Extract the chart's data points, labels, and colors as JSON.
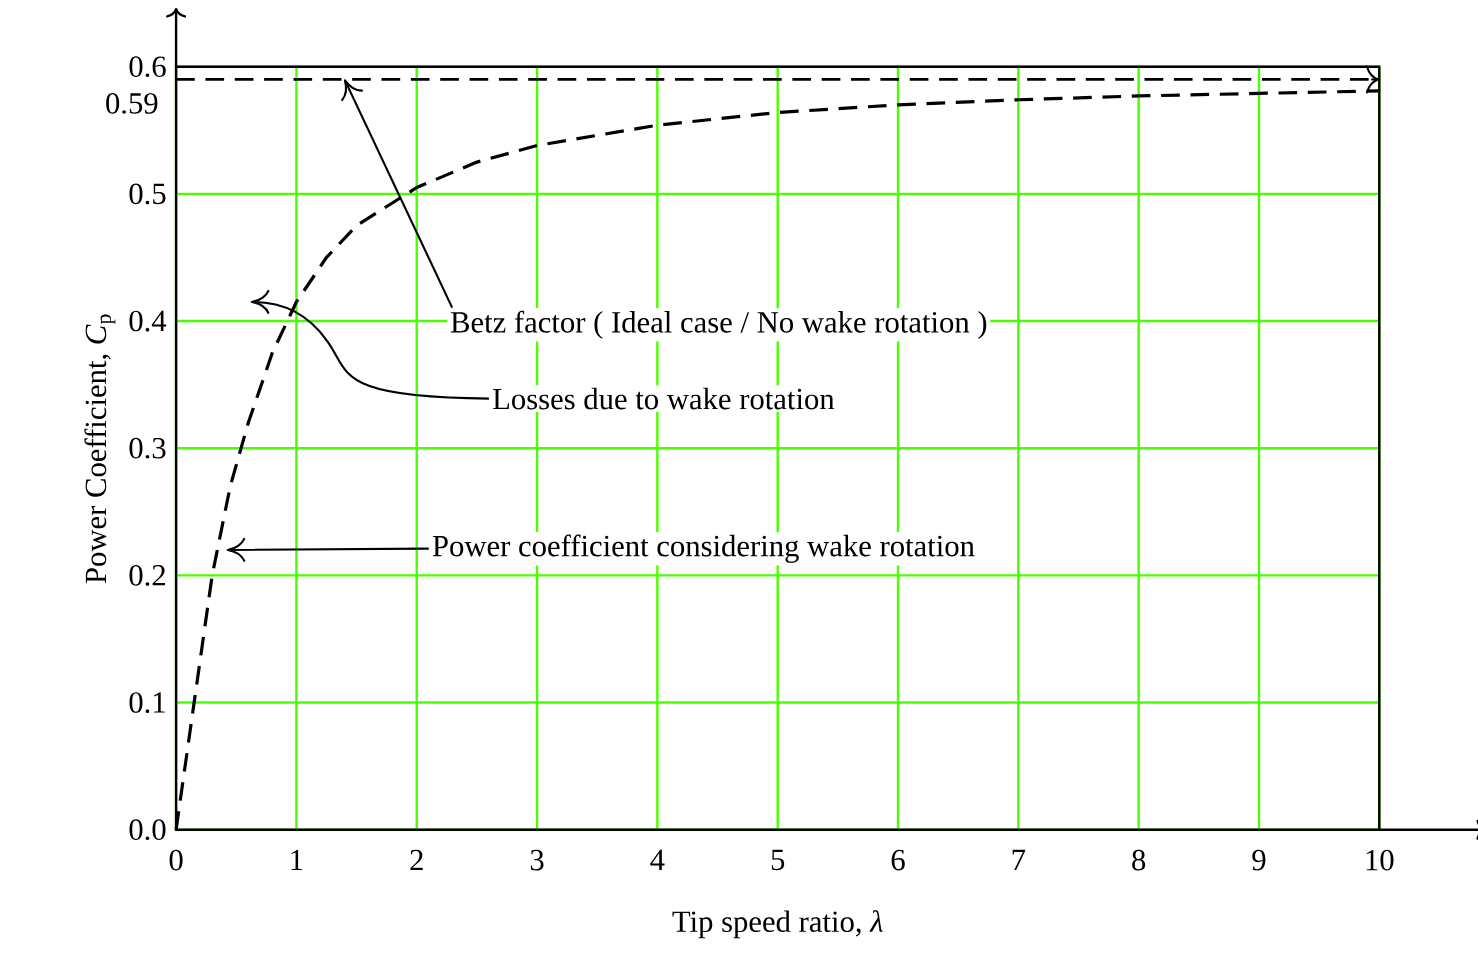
{
  "chart_data": {
    "type": "line",
    "xlabel": "Tip speed  ratio, *λ*",
    "ylabel": "Power Coefficient, *C*$_{p}$",
    "xlim": [
      0,
      10
    ],
    "ylim": [
      0,
      0.6
    ],
    "xticks": [
      0,
      1,
      2,
      3,
      4,
      5,
      6,
      7,
      8,
      9,
      10
    ],
    "yticks": [
      {
        "value": 0,
        "label": "0.0"
      },
      0.1,
      0.2,
      0.3,
      0.4,
      0.5,
      0.6
    ],
    "grid": true,
    "marker": "none",
    "line_style": "dashed",
    "series": [
      {
        "color": "#000000",
        "x": [
          0,
          0.15,
          0.3,
          0.45,
          0.6,
          0.8,
          1,
          1.25,
          1.5,
          2,
          2.5,
          3,
          4,
          5,
          6,
          7,
          8,
          9,
          10
        ],
        "values": [
          0,
          0.1,
          0.2,
          0.27,
          0.32,
          0.375,
          0.415,
          0.45,
          0.475,
          0.505,
          0.525,
          0.538,
          0.554,
          0.564,
          0.57,
          0.574,
          0.577,
          0.579,
          0.581
        ]
      }
    ],
    "ref_lines": [
      {
        "axis": "y",
        "value": 0.59,
        "label": "0.59",
        "line_style": "dashed",
        "color": "#000000"
      }
    ],
    "annotations": [
      {
        "text": "Betz factor ( Ideal case / No wake rotation )",
        "x": 1.4,
        "y": 0.59
      },
      "Losses due to wake rotation",
      {
        "text": "Power coefficient considering wake rotation",
        "x": 0.42,
        "y": 0.22
      }
    ]
  }
}
